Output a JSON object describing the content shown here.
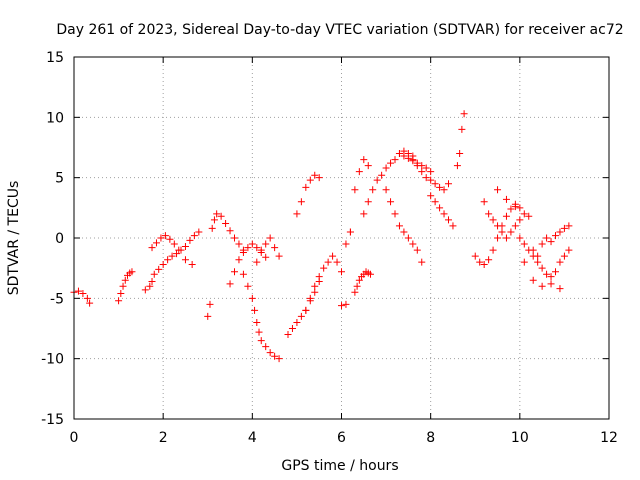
{
  "chart_data": {
    "type": "scatter",
    "title": "Day 261 of 2023, Sidereal Day-to-day VTEC variation (SDTVAR) for receiver ac72",
    "xlabel": "GPS time / hours",
    "ylabel": "SDTVAR / TECUs",
    "xlim": [
      0,
      12
    ],
    "ylim": [
      -15,
      15
    ],
    "xticks": [
      "0",
      "2",
      "4",
      "6",
      "8",
      "10",
      "12"
    ],
    "yticks": [
      "15",
      "10",
      "5",
      "0",
      "-5",
      "-10",
      "-15"
    ],
    "xtick_values": [
      0,
      2,
      4,
      6,
      8,
      10,
      12
    ],
    "ytick_values": [
      15,
      10,
      5,
      0,
      -5,
      -10,
      -15
    ],
    "grid": true,
    "marker": "+",
    "color": "#ff0000",
    "series": [
      {
        "name": "SDTVAR",
        "x": [
          0.0,
          0.1,
          0.2,
          0.3,
          0.35,
          1.0,
          1.05,
          1.1,
          1.15,
          1.2,
          1.25,
          1.3,
          1.6,
          1.7,
          1.75,
          1.8,
          1.9,
          2.0,
          2.1,
          2.2,
          2.3,
          2.4,
          2.5,
          2.6,
          2.7,
          2.8,
          1.75,
          1.85,
          1.95,
          2.05,
          2.15,
          2.25,
          2.35,
          2.5,
          2.65,
          3.0,
          3.05,
          3.1,
          3.15,
          3.2,
          3.3,
          3.4,
          3.5,
          3.6,
          3.7,
          3.8,
          3.5,
          3.6,
          3.7,
          3.8,
          3.9,
          4.0,
          4.1,
          4.2,
          4.3,
          3.8,
          3.9,
          4.0,
          4.05,
          4.1,
          4.15,
          4.2,
          4.3,
          4.4,
          4.5,
          4.6,
          4.1,
          4.2,
          4.3,
          4.4,
          4.5,
          4.6,
          4.8,
          4.9,
          5.0,
          5.1,
          5.2,
          5.3,
          5.4,
          5.5,
          5.0,
          5.1,
          5.2,
          5.3,
          5.4,
          5.5,
          5.2,
          5.3,
          5.4,
          5.5,
          5.6,
          5.7,
          5.8,
          5.9,
          6.0,
          6.1,
          6.2,
          6.0,
          6.1,
          6.2,
          6.3,
          6.4,
          6.5,
          6.6,
          6.3,
          6.35,
          6.4,
          6.45,
          6.5,
          6.55,
          6.6,
          6.65,
          6.5,
          6.6,
          6.7,
          6.8,
          6.9,
          7.0,
          7.1,
          7.2,
          7.3,
          7.4,
          7.5,
          7.6,
          7.0,
          7.1,
          7.2,
          7.3,
          7.4,
          7.5,
          7.6,
          7.7,
          7.8,
          7.6,
          7.7,
          7.8,
          7.9,
          8.0,
          8.1,
          8.2,
          8.3,
          8.4,
          7.3,
          7.4,
          7.5,
          7.6,
          7.7,
          7.8,
          7.9,
          8.0,
          8.0,
          8.1,
          8.2,
          8.3,
          8.4,
          8.5,
          8.6,
          8.65,
          8.7,
          8.75,
          9.0,
          9.1,
          9.2,
          9.3,
          9.4,
          9.5,
          9.6,
          9.7,
          9.8,
          9.9,
          10.0,
          9.2,
          9.3,
          9.4,
          9.5,
          9.6,
          9.7,
          9.8,
          9.9,
          10.0,
          10.1,
          10.2,
          10.0,
          10.1,
          10.2,
          10.3,
          10.4,
          10.5,
          10.6,
          10.7,
          10.8,
          10.9,
          11.0,
          11.1,
          10.3,
          10.4,
          10.5,
          10.6,
          10.7,
          10.8,
          10.9,
          11.0,
          11.1,
          9.5,
          9.7,
          9.9,
          10.1,
          10.3,
          10.5,
          10.7,
          10.9
        ],
        "y": [
          -4.5,
          -4.4,
          -4.6,
          -5.0,
          -5.4,
          -5.2,
          -4.6,
          -4.0,
          -3.5,
          -3.1,
          -2.9,
          -2.8,
          -4.3,
          -4.0,
          -3.6,
          -3.0,
          -2.6,
          -2.2,
          -1.8,
          -1.5,
          -1.3,
          -1.0,
          -0.7,
          -0.2,
          0.2,
          0.5,
          -0.8,
          -0.4,
          0.0,
          0.2,
          -0.1,
          -0.5,
          -1.0,
          -1.8,
          -2.2,
          -6.5,
          -5.5,
          0.8,
          1.5,
          2.0,
          1.8,
          1.2,
          0.6,
          0.0,
          -0.5,
          -1.0,
          -3.8,
          -2.8,
          -1.8,
          -1.2,
          -0.8,
          -0.5,
          -0.8,
          -1.2,
          -1.6,
          -3.0,
          -4.0,
          -5.0,
          -6.0,
          -7.0,
          -7.8,
          -8.5,
          -9.0,
          -9.5,
          -9.8,
          -10.0,
          -2.0,
          -1.0,
          -0.5,
          0.0,
          -0.8,
          -1.5,
          -8.0,
          -7.5,
          -7.0,
          -6.5,
          -6.0,
          -5.2,
          -4.5,
          -3.6,
          2.0,
          3.0,
          4.2,
          4.8,
          5.2,
          5.0,
          -6.0,
          -5.0,
          -4.0,
          -3.2,
          -2.5,
          -2.0,
          -1.5,
          -2.0,
          -2.8,
          -0.5,
          0.5,
          -5.6,
          -5.5,
          0.5,
          4.0,
          5.5,
          6.5,
          6.0,
          -4.5,
          -4.0,
          -3.5,
          -3.2,
          -3.0,
          -2.8,
          -2.9,
          -3.0,
          2.0,
          3.0,
          4.0,
          4.8,
          5.2,
          5.8,
          6.2,
          6.5,
          7.0,
          7.2,
          7.0,
          6.8,
          4.0,
          3.0,
          2.0,
          1.0,
          0.5,
          0.0,
          -0.5,
          -1.0,
          -2.0,
          6.5,
          6.0,
          5.5,
          5.0,
          4.8,
          4.5,
          4.2,
          4.0,
          4.5,
          7.0,
          6.8,
          6.6,
          6.4,
          6.2,
          6.0,
          5.8,
          5.5,
          3.5,
          3.0,
          2.5,
          2.0,
          1.5,
          1.0,
          6.0,
          7.0,
          9.0,
          10.3,
          -1.5,
          -2.0,
          -2.2,
          -1.8,
          -1.0,
          0.0,
          1.0,
          1.8,
          2.4,
          2.8,
          2.5,
          3.0,
          2.0,
          1.5,
          1.0,
          0.5,
          0.0,
          0.5,
          1.0,
          1.5,
          2.0,
          1.8,
          0.0,
          -0.5,
          -1.0,
          -1.5,
          -2.0,
          -2.5,
          -3.0,
          -3.2,
          -2.8,
          -2.0,
          -1.5,
          -1.0,
          -1.0,
          -1.5,
          -0.5,
          0.0,
          -0.3,
          0.2,
          0.5,
          0.8,
          1.0,
          4.0,
          3.2,
          2.6,
          -2.0,
          -3.5,
          -4.0,
          -3.8,
          -4.2
        ]
      }
    ]
  }
}
